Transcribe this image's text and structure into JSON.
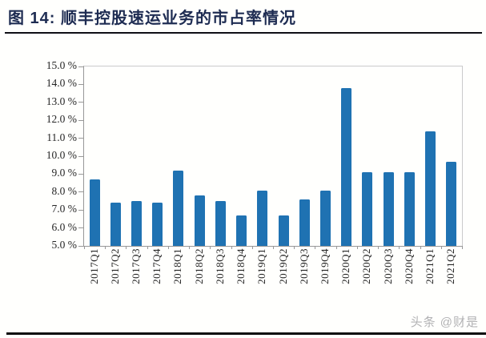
{
  "header": {
    "title": "图 14:  顺丰控股速运业务的市占率情况"
  },
  "chart_data": {
    "type": "bar",
    "title": "顺丰控股速运业务的市占率情况",
    "categories": [
      "2017Q1",
      "2017Q2",
      "2017Q3",
      "2017Q4",
      "2018Q1",
      "2018Q2",
      "2018Q3",
      "2018Q4",
      "2019Q1",
      "2019Q2",
      "2019Q3",
      "2019Q4",
      "2020Q1",
      "2020Q2",
      "2020Q3",
      "2020Q4",
      "2021Q1",
      "2021Q2"
    ],
    "values": [
      8.7,
      7.4,
      7.5,
      7.4,
      9.2,
      7.8,
      7.5,
      6.7,
      8.1,
      6.7,
      7.6,
      8.1,
      13.8,
      9.1,
      9.1,
      9.1,
      11.4,
      9.7
    ],
    "unit": "%",
    "ylim": [
      5.0,
      15.0
    ],
    "y_tick_step": 1.0,
    "y_tick_labels": [
      "15.0 %",
      "14.0 %",
      "13.0 %",
      "12.0 %",
      "11.0 %",
      "10.0 %",
      "9.0 %",
      "8.0 %",
      "7.0 %",
      "6.0 %",
      "5.0 %"
    ],
    "bar_color": "#1f72b2",
    "grid": "off",
    "legend": "none"
  },
  "watermark": {
    "text": "头条 @财是"
  }
}
